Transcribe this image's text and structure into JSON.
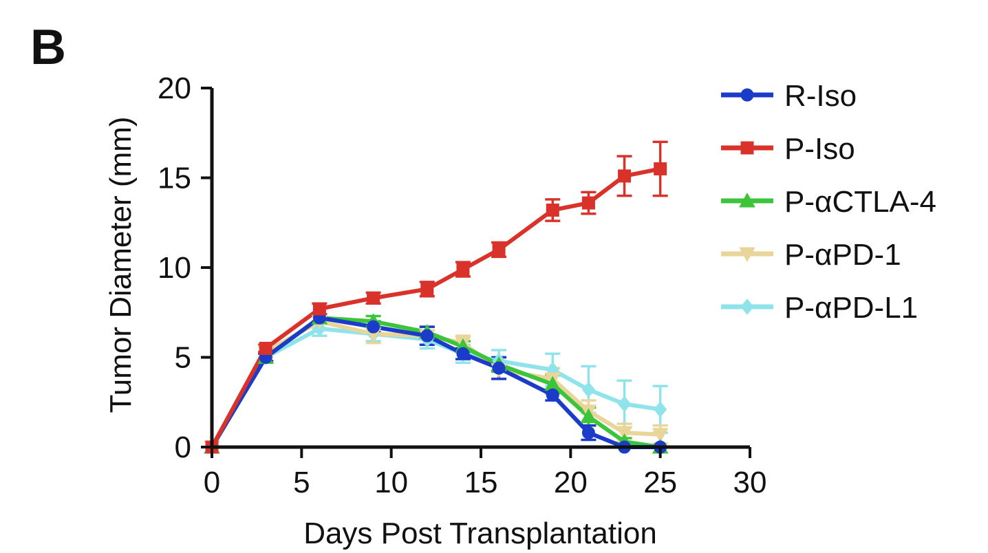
{
  "panel": {
    "label": "B"
  },
  "chart_data": {
    "type": "line",
    "title": "",
    "xlabel": "Days Post Transplantation",
    "ylabel": "Tumor Diameter (mm)",
    "xlim": [
      0,
      30
    ],
    "ylim": [
      0,
      20
    ],
    "xticks": [
      0,
      5,
      10,
      15,
      20,
      25,
      30
    ],
    "yticks": [
      0,
      5,
      10,
      15,
      20
    ],
    "grid": false,
    "legend_position": "top-right",
    "series": [
      {
        "name": "R-Iso",
        "color": "#1a3cc8",
        "marker": "circle",
        "x": [
          0,
          3,
          6,
          9,
          12,
          14,
          16,
          19,
          21,
          23,
          25
        ],
        "y": [
          0,
          5.0,
          7.2,
          6.7,
          6.2,
          5.2,
          4.4,
          2.9,
          0.8,
          0,
          0
        ],
        "err": [
          0,
          0.2,
          0.2,
          0.3,
          0.5,
          0.3,
          0.6,
          0.3,
          0.4,
          0,
          0
        ]
      },
      {
        "name": "P-Iso",
        "color": "#d9322a",
        "marker": "square",
        "x": [
          0,
          3,
          6,
          9,
          12,
          14,
          16,
          19,
          21,
          23,
          25
        ],
        "y": [
          0,
          5.5,
          7.7,
          8.3,
          8.8,
          9.9,
          11.0,
          13.2,
          13.6,
          15.1,
          15.5
        ],
        "err": [
          0,
          0.2,
          0.3,
          0.3,
          0.4,
          0.4,
          0.4,
          0.6,
          0.6,
          1.1,
          1.5
        ]
      },
      {
        "name": "P-αCTLA-4",
        "color": "#3cc43a",
        "marker": "triangle",
        "x": [
          0,
          3,
          6,
          9,
          12,
          14,
          16,
          19,
          21,
          23,
          25
        ],
        "y": [
          0,
          5.0,
          7.2,
          7.0,
          6.4,
          5.6,
          4.6,
          3.5,
          1.7,
          0.3,
          0
        ],
        "err": [
          0,
          0.2,
          0.2,
          0.3,
          0.3,
          0.3,
          0.4,
          0.5,
          0.5,
          0.2,
          0
        ]
      },
      {
        "name": "P-αPD-1",
        "color": "#e9d49a",
        "marker": "triangle-down",
        "x": [
          0,
          3,
          6,
          9,
          12,
          14,
          16,
          19,
          21,
          23,
          25
        ],
        "y": [
          0,
          5.3,
          7.0,
          6.3,
          6.2,
          5.8,
          4.3,
          3.8,
          2.0,
          0.8,
          0.7
        ],
        "err": [
          0,
          0.3,
          0.4,
          0.5,
          0.5,
          0.4,
          0.5,
          0.6,
          0.6,
          0.5,
          0.5
        ]
      },
      {
        "name": "P-αPD-L1",
        "color": "#8fe3ea",
        "marker": "diamond",
        "x": [
          0,
          3,
          6,
          9,
          12,
          14,
          16,
          19,
          21,
          23,
          25
        ],
        "y": [
          0,
          5.0,
          6.6,
          6.3,
          6.0,
          5.2,
          4.8,
          4.3,
          3.2,
          2.4,
          2.1
        ],
        "err": [
          0,
          0.3,
          0.4,
          0.4,
          0.5,
          0.5,
          0.6,
          0.9,
          1.3,
          1.3,
          1.3
        ]
      }
    ]
  }
}
